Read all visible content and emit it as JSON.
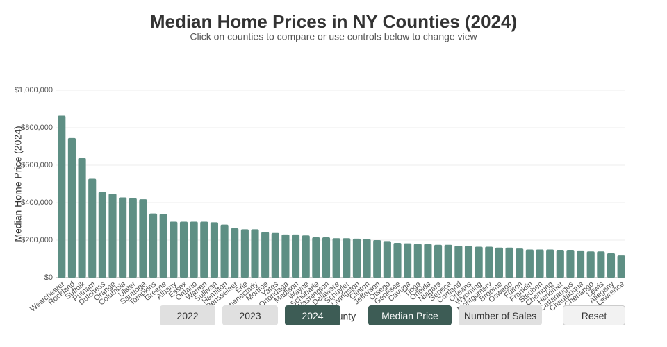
{
  "chart_data": {
    "type": "bar",
    "title": "Median Home Prices in NY Counties (2024)",
    "subtitle": "Click on counties to compare or use controls below to change view",
    "y_label": "Median Home Price (2024)",
    "x_label": "County",
    "color": "#5e8f84",
    "grid": true,
    "categories": [
      "Westchester",
      "Rockland",
      "Suffolk",
      "Putnam",
      "Dutchess",
      "Orange",
      "Columbia",
      "Ulster",
      "Saratoga",
      "Tompkins",
      "Greene",
      "Albany",
      "Essex",
      "Ontario",
      "Warren",
      "Sullivan",
      "Hamilton",
      "Rensselaer",
      "Erie",
      "Schenectady",
      "Monroe",
      "Yates",
      "Onondaga",
      "Madison",
      "Wayne",
      "Schoharie",
      "Washington",
      "Delaware",
      "Schuyler",
      "Livingston",
      "Clinton",
      "Jefferson",
      "Otsego",
      "Genesee",
      "Cayuga",
      "Tioga",
      "Oneida",
      "Niagara",
      "Seneca",
      "Cortland",
      "Orleans",
      "Wyoming",
      "Montgomery",
      "Broome",
      "Oswego",
      "Fulton",
      "Franklin",
      "Steuben",
      "Chemung",
      "Herkimer",
      "Cattaraugus",
      "Chautauqua",
      "Chenango",
      "Lewis",
      "Allegany",
      "St. Lawrence"
    ],
    "values": [
      865000,
      745000,
      638000,
      528000,
      458000,
      448000,
      428000,
      423000,
      418000,
      342000,
      340000,
      298000,
      298000,
      298000,
      298000,
      295000,
      283000,
      263000,
      258000,
      258000,
      243000,
      238000,
      230000,
      230000,
      225000,
      215000,
      215000,
      210000,
      210000,
      208000,
      205000,
      200000,
      195000,
      185000,
      183000,
      180000,
      180000,
      175000,
      175000,
      170000,
      170000,
      165000,
      165000,
      160000,
      160000,
      155000,
      150000,
      150000,
      150000,
      148000,
      148000,
      145000,
      140000,
      140000,
      130000,
      118000
    ],
    "ylim": [
      0,
      1000000
    ],
    "yticks": [
      {
        "value": 0,
        "label": "$0"
      },
      {
        "value": 200000,
        "label": "$200,000"
      },
      {
        "value": 400000,
        "label": "$400,000"
      },
      {
        "value": 600000,
        "label": "$600,000"
      },
      {
        "value": 800000,
        "label": "$800,000"
      },
      {
        "value": 1000000,
        "label": "$1,000,000"
      }
    ]
  },
  "controls": {
    "years": [
      "2022",
      "2023",
      "2024"
    ],
    "active_year": 2,
    "metrics": [
      "Median Price",
      "Number of Sales"
    ],
    "active_metric": 0,
    "reset": "Reset"
  }
}
